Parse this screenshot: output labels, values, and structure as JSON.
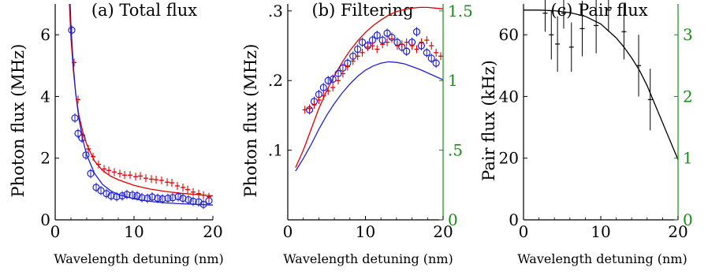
{
  "chart_data": [
    {
      "type": "scatter",
      "title": "(a) Total flux",
      "xlabel": "Wavelength detuning (nm)",
      "ylabel": "Photon flux (MHz)",
      "xlim": [
        0,
        20
      ],
      "ylim": [
        0,
        7
      ],
      "xticks": [
        "0",
        "10",
        "20"
      ],
      "yticks": [
        "0",
        "2",
        "4",
        "6"
      ],
      "series": [
        {
          "marker": "circle",
          "color": "#2020d0",
          "x": [
            2.1,
            2.5,
            2.9,
            3.4,
            3.9,
            4.5,
            5.2,
            5.8,
            6.5,
            7.1,
            7.8,
            8.5,
            9.1,
            9.8,
            10.4,
            11.0,
            11.7,
            12.3,
            13.0,
            13.6,
            14.3,
            14.9,
            15.6,
            16.2,
            16.9,
            17.5,
            18.2,
            18.8,
            19.5
          ],
          "y": [
            6.15,
            3.3,
            2.8,
            2.65,
            2.1,
            1.5,
            1.05,
            0.95,
            0.85,
            0.78,
            0.75,
            0.78,
            0.82,
            0.8,
            0.78,
            0.72,
            0.7,
            0.74,
            0.7,
            0.68,
            0.7,
            0.72,
            0.75,
            0.7,
            0.65,
            0.6,
            0.58,
            0.5,
            0.62
          ]
        },
        {
          "marker": "plus",
          "color": "#e00000",
          "x": [
            2.4,
            2.9,
            3.5,
            4.2,
            4.8,
            5.5,
            6.2,
            6.8,
            7.5,
            8.2,
            8.8,
            9.5,
            10.2,
            10.8,
            11.5,
            12.2,
            12.8,
            13.5,
            14.2,
            14.8,
            15.5,
            16.2,
            16.8,
            17.5,
            18.2,
            18.8,
            19.5
          ],
          "y": [
            5.1,
            3.9,
            2.75,
            2.3,
            2.05,
            1.8,
            1.65,
            1.6,
            1.55,
            1.5,
            1.45,
            1.45,
            1.4,
            1.42,
            1.35,
            1.32,
            1.3,
            1.28,
            1.22,
            1.2,
            1.1,
            1.05,
            0.98,
            0.9,
            0.85,
            0.8,
            0.75
          ]
        }
      ],
      "curves": [
        {
          "color": "#e00000",
          "x": [
            1.8,
            2.0,
            2.3,
            2.6,
            3.0,
            3.5,
            4.0,
            5,
            6,
            7,
            8,
            10,
            12,
            14,
            16,
            18,
            20
          ],
          "y": [
            7.0,
            5.9,
            4.85,
            4.1,
            3.4,
            2.85,
            2.45,
            1.9,
            1.6,
            1.42,
            1.3,
            1.12,
            1.0,
            0.92,
            0.86,
            0.82,
            0.78
          ]
        },
        {
          "color": "#2020d0",
          "x": [
            1.9,
            2.0,
            2.3,
            2.6,
            3.0,
            3.5,
            4.0,
            5,
            6,
            7,
            8,
            10,
            12,
            14,
            16,
            18,
            20
          ],
          "y": [
            7.0,
            6.3,
            5.0,
            4.1,
            3.3,
            2.6,
            2.1,
            1.5,
            1.15,
            0.95,
            0.82,
            0.68,
            0.6,
            0.55,
            0.52,
            0.5,
            0.48
          ]
        }
      ]
    },
    {
      "type": "scatter",
      "title": "(b) Filtering",
      "xlabel": "Wavelength detuning (nm)",
      "ylabel": "Photon flux (MHz)",
      "xlim": [
        0,
        20
      ],
      "ylim": [
        0,
        0.31
      ],
      "xticks": [
        "0",
        "10",
        "20"
      ],
      "yticks": [
        ".1",
        ".2",
        ".3"
      ],
      "y2lim": [
        0,
        1.55
      ],
      "y2ticks": [
        "0",
        ".5",
        "1",
        "1.5"
      ],
      "series": [
        {
          "marker": "circle",
          "color": "#2020d0",
          "x": [
            2.8,
            3.4,
            4.0,
            4.6,
            5.2,
            5.8,
            6.5,
            7.1,
            7.7,
            8.4,
            9.0,
            9.6,
            10.3,
            10.9,
            11.5,
            12.2,
            12.8,
            13.4,
            14.1,
            14.7,
            15.3,
            16.0,
            16.6,
            17.2,
            17.9,
            18.5,
            19.1
          ],
          "y": [
            0.158,
            0.17,
            0.18,
            0.19,
            0.2,
            0.202,
            0.21,
            0.218,
            0.225,
            0.235,
            0.245,
            0.255,
            0.25,
            0.258,
            0.265,
            0.258,
            0.268,
            0.262,
            0.255,
            0.248,
            0.242,
            0.255,
            0.27,
            0.25,
            0.24,
            0.232,
            0.225
          ]
        },
        {
          "marker": "plus",
          "color": "#e00000",
          "x": [
            2.2,
            2.8,
            3.4,
            4.0,
            4.6,
            5.2,
            5.8,
            6.5,
            7.1,
            7.7,
            8.4,
            9.0,
            9.6,
            10.3,
            10.9,
            11.5,
            12.2,
            12.8,
            13.4,
            14.1,
            14.7,
            15.3,
            16.0,
            16.6,
            17.2,
            17.9,
            18.5,
            19.1,
            19.7
          ],
          "y": [
            0.158,
            0.16,
            0.165,
            0.172,
            0.178,
            0.185,
            0.19,
            0.2,
            0.21,
            0.22,
            0.228,
            0.235,
            0.24,
            0.248,
            0.25,
            0.245,
            0.252,
            0.255,
            0.26,
            0.25,
            0.252,
            0.255,
            0.25,
            0.245,
            0.255,
            0.258,
            0.25,
            0.24,
            0.235
          ]
        }
      ],
      "curves": [
        {
          "color": "#e00000",
          "x": [
            1,
            2,
            3,
            4,
            5,
            6,
            7,
            8,
            9,
            10,
            11,
            12,
            13,
            14,
            15,
            16,
            17,
            18,
            19,
            20
          ],
          "y": [
            0.075,
            0.1,
            0.13,
            0.16,
            0.185,
            0.207,
            0.226,
            0.243,
            0.257,
            0.269,
            0.279,
            0.287,
            0.294,
            0.299,
            0.302,
            0.304,
            0.305,
            0.305,
            0.304,
            0.303
          ]
        },
        {
          "color": "#2020d0",
          "x": [
            1,
            2,
            3,
            4,
            5,
            6,
            7,
            8,
            9,
            10,
            11,
            12,
            13,
            14,
            15,
            16,
            17,
            18,
            19,
            20
          ],
          "y": [
            0.07,
            0.088,
            0.108,
            0.13,
            0.15,
            0.167,
            0.182,
            0.195,
            0.206,
            0.215,
            0.221,
            0.225,
            0.227,
            0.226,
            0.224,
            0.22,
            0.216,
            0.211,
            0.206,
            0.201
          ]
        }
      ]
    },
    {
      "type": "scatter",
      "title": "(c) Pair flux",
      "xlabel": "Wavelength detuning (nm)",
      "ylabel": "Pair flux (kHz)",
      "xlim": [
        0,
        20
      ],
      "ylim": [
        0,
        70
      ],
      "xticks": [
        "0",
        "10",
        "20"
      ],
      "yticks": [
        "0",
        "20",
        "40",
        "60"
      ],
      "y2lim": [
        0,
        3.5
      ],
      "y2ticks": [
        "0",
        "1",
        "2",
        "3"
      ],
      "series": [
        {
          "marker": "plus",
          "color": "#000000",
          "x": [
            2.8,
            3.6,
            4.4,
            5.2,
            6.2,
            7.6,
            9.4,
            11.0,
            13.0,
            14.9,
            16.4
          ],
          "y": [
            67,
            60,
            57,
            67,
            56,
            62,
            63,
            68,
            61,
            50,
            39
          ],
          "err": [
            6,
            8,
            9,
            5,
            8,
            9,
            9,
            7,
            9,
            10,
            10
          ]
        }
      ],
      "curves": [
        {
          "color": "#000000",
          "x": [
            0,
            2,
            4,
            6,
            8,
            10,
            12,
            13,
            14,
            15,
            16,
            17,
            18,
            19,
            20
          ],
          "y": [
            68,
            68,
            67.8,
            67.2,
            66,
            63.5,
            59,
            56,
            52.5,
            48.5,
            43.5,
            37.5,
            31.5,
            25.5,
            19.5
          ]
        }
      ]
    }
  ]
}
